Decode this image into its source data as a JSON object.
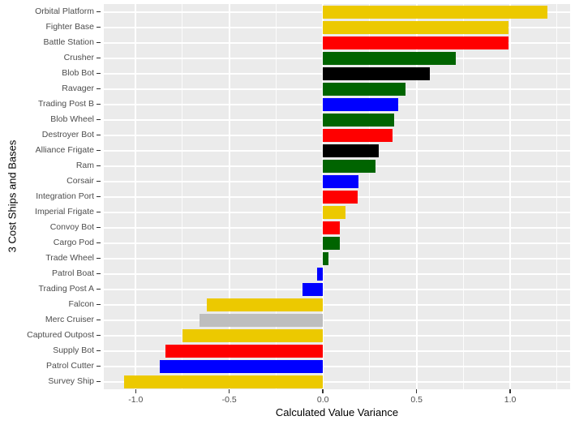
{
  "chart_data": {
    "type": "bar",
    "orientation": "horizontal",
    "title": "",
    "xlabel": "Calculated Value Variance",
    "ylabel": "3 Cost Ships and Bases",
    "xlim": [
      -1.17,
      1.32
    ],
    "grid": "on",
    "legend": "none",
    "x_ticks": [
      -1.0,
      -0.5,
      0.0,
      0.5,
      1.0
    ],
    "x_tick_labels": [
      "-1.0",
      "-0.5",
      "0.0",
      "0.5",
      "1.0"
    ],
    "x_minor_ticks": [
      -0.75,
      -0.25,
      0.25,
      0.75,
      1.25
    ],
    "categories": [
      "Orbital Platform",
      "Fighter Base",
      "Battle Station",
      "Crusher",
      "Blob Bot",
      "Ravager",
      "Trading Post B",
      "Blob Wheel",
      "Destroyer Bot",
      "Alliance Frigate",
      "Ram",
      "Corsair",
      "Integration Port",
      "Imperial Frigate",
      "Convoy Bot",
      "Cargo Pod",
      "Trade Wheel",
      "Patrol Boat",
      "Trading Post A",
      "Falcon",
      "Merc Cruiser",
      "Captured Outpost",
      "Supply Bot",
      "Patrol Cutter",
      "Survey Ship"
    ],
    "values": [
      1.2,
      0.99,
      0.99,
      0.71,
      0.57,
      0.44,
      0.4,
      0.38,
      0.37,
      0.3,
      0.28,
      0.19,
      0.185,
      0.12,
      0.09,
      0.09,
      0.03,
      -0.03,
      -0.11,
      -0.62,
      -0.66,
      -0.75,
      -0.84,
      -0.87,
      -1.06
    ],
    "bar_colors": [
      "#ECC900",
      "#ECC900",
      "#FF0000",
      "#006400",
      "#000000",
      "#006400",
      "#0000FF",
      "#006400",
      "#FF0000",
      "#000000",
      "#006400",
      "#0000FF",
      "#FF0000",
      "#ECC900",
      "#FF0000",
      "#006400",
      "#006400",
      "#0000FF",
      "#0000FF",
      "#ECC900",
      "#BEBEBE",
      "#ECC900",
      "#FF0000",
      "#0000FF",
      "#ECC900"
    ],
    "colors": {
      "panel_bg": "#EBEBEB",
      "grid": "#FFFFFF",
      "tick_text": "#4D4D4D",
      "axis_title_text": "#000000",
      "tick_mark": "#333333",
      "figure_bg": "#FFFFFF"
    }
  }
}
